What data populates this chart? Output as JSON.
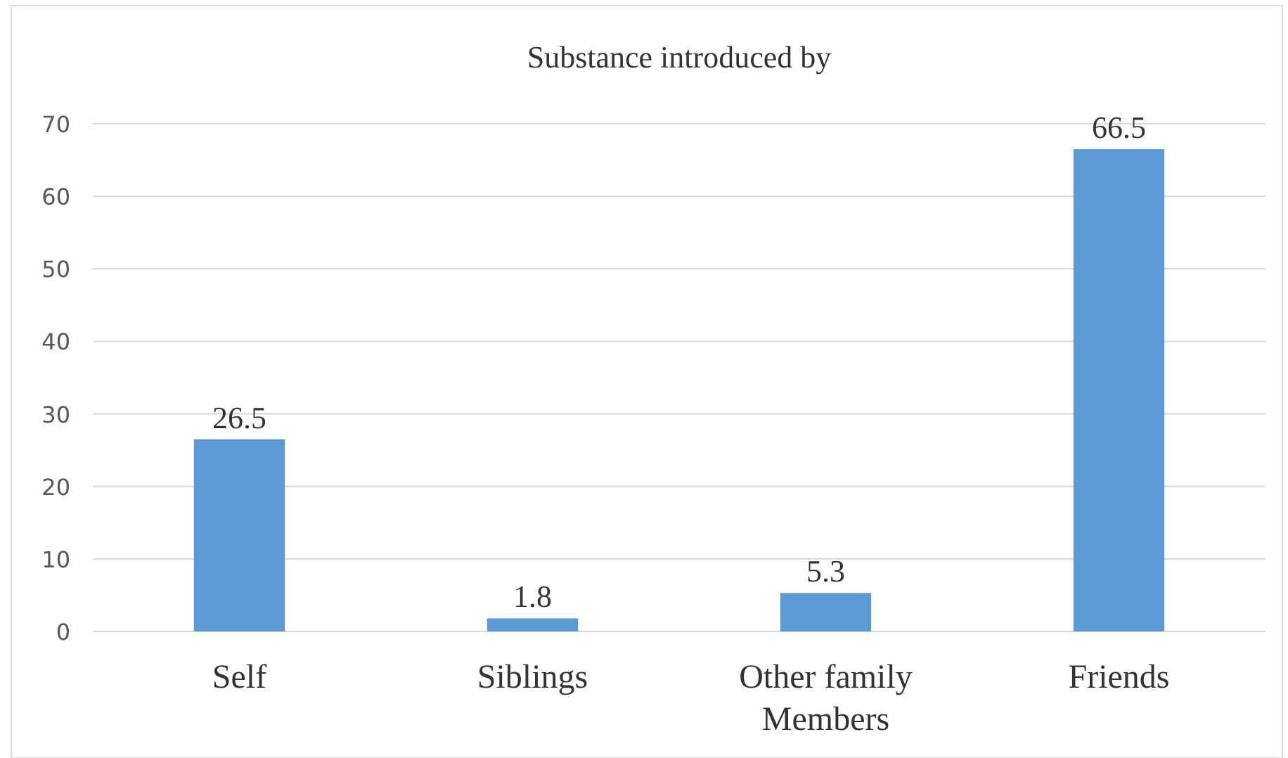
{
  "chart_data": {
    "type": "bar",
    "title": "Substance introduced by",
    "categories": [
      "Self",
      "Siblings",
      "Other family Members",
      "Friends"
    ],
    "values": [
      26.5,
      1.8,
      5.3,
      66.5
    ],
    "color": "#5b9bd5",
    "ylim": [
      0,
      70
    ],
    "yticks": [
      0,
      10,
      20,
      30,
      40,
      50,
      60,
      70
    ],
    "grid": "y",
    "data_labels": true
  }
}
